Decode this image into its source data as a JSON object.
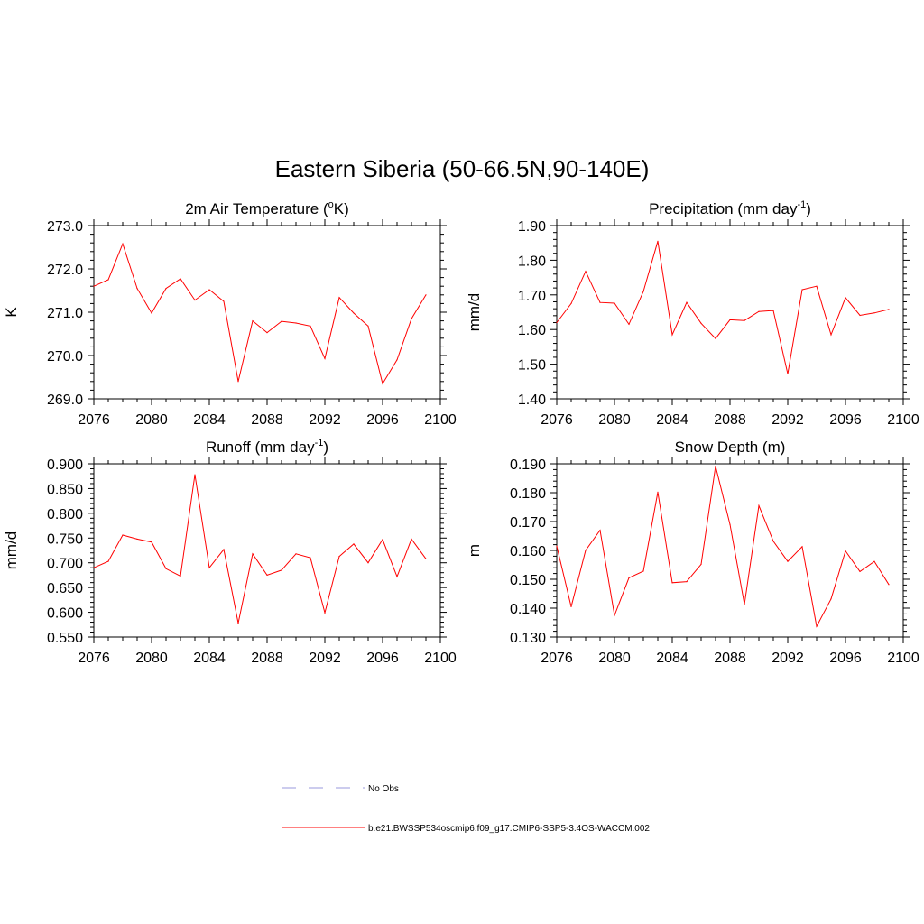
{
  "main_title": "Eastern Siberia (50-66.5N,90-140E)",
  "legend": [
    {
      "label": "No Obs",
      "color": "#9999dd",
      "dashed": true
    },
    {
      "label": "b.e21.BWSSP534oscmip6.f09_g17.CMIP6-SSP5-3.4OS-WACCM.002",
      "color": "#ff0000",
      "dashed": false
    }
  ],
  "chart_data": [
    {
      "type": "line",
      "title": "2m Air Temperature (",
      "title_sup": "o",
      "title_tail": "K)",
      "ylabel": "K",
      "xlim": [
        2076,
        2100
      ],
      "xticks": [
        "2076",
        "2080",
        "2084",
        "2088",
        "2092",
        "2096",
        "2100"
      ],
      "ylim": [
        269.0,
        273.0
      ],
      "yticks": [
        "269.0",
        "270.0",
        "271.0",
        "272.0",
        "273.0"
      ],
      "series": [
        {
          "color": "#ff0000",
          "x": [
            2076,
            2077,
            2078,
            2079,
            2080,
            2081,
            2082,
            2083,
            2084,
            2085,
            2086,
            2087,
            2088,
            2089,
            2090,
            2091,
            2092,
            2093,
            2094,
            2095,
            2096,
            2097,
            2098,
            2099
          ],
          "values": [
            271.6,
            271.75,
            272.58,
            271.55,
            270.98,
            271.55,
            271.77,
            271.28,
            271.52,
            271.25,
            269.4,
            270.8,
            270.53,
            270.79,
            270.75,
            270.68,
            269.93,
            271.34,
            270.98,
            270.68,
            269.35,
            269.9,
            270.85,
            271.4
          ]
        }
      ]
    },
    {
      "type": "line",
      "title": "Precipitation (mm day",
      "title_sup": "-1",
      "title_tail": ")",
      "ylabel": "mm/d",
      "xlim": [
        2076,
        2100
      ],
      "xticks": [
        "2076",
        "2080",
        "2084",
        "2088",
        "2092",
        "2096",
        "2100"
      ],
      "ylim": [
        1.4,
        1.9
      ],
      "yticks": [
        "1.40",
        "1.50",
        "1.60",
        "1.70",
        "1.80",
        "1.90"
      ],
      "series": [
        {
          "color": "#ff0000",
          "x": [
            2076,
            2077,
            2078,
            2079,
            2080,
            2081,
            2082,
            2083,
            2084,
            2085,
            2086,
            2087,
            2088,
            2089,
            2090,
            2091,
            2092,
            2093,
            2094,
            2095,
            2096,
            2097,
            2098,
            2099
          ],
          "values": [
            1.62,
            1.675,
            1.768,
            1.678,
            1.676,
            1.615,
            1.71,
            1.855,
            1.585,
            1.678,
            1.618,
            1.574,
            1.628,
            1.626,
            1.652,
            1.655,
            1.472,
            1.715,
            1.725,
            1.585,
            1.692,
            1.641,
            1.648,
            1.658
          ]
        }
      ]
    },
    {
      "type": "line",
      "title": "Runoff (mm day",
      "title_sup": "-1",
      "title_tail": ")",
      "ylabel": "mm/d",
      "xlim": [
        2076,
        2100
      ],
      "xticks": [
        "2076",
        "2080",
        "2084",
        "2088",
        "2092",
        "2096",
        "2100"
      ],
      "ylim": [
        0.55,
        0.9
      ],
      "yticks": [
        "0.550",
        "0.600",
        "0.650",
        "0.700",
        "0.750",
        "0.800",
        "0.850",
        "0.900"
      ],
      "series": [
        {
          "color": "#ff0000",
          "x": [
            2076,
            2077,
            2078,
            2079,
            2080,
            2081,
            2082,
            2083,
            2084,
            2085,
            2086,
            2087,
            2088,
            2089,
            2090,
            2091,
            2092,
            2093,
            2094,
            2095,
            2096,
            2097,
            2098,
            2099
          ],
          "values": [
            0.69,
            0.703,
            0.756,
            0.748,
            0.742,
            0.688,
            0.673,
            0.878,
            0.69,
            0.727,
            0.578,
            0.718,
            0.675,
            0.685,
            0.718,
            0.71,
            0.599,
            0.713,
            0.738,
            0.7,
            0.747,
            0.672,
            0.748,
            0.708
          ]
        }
      ]
    },
    {
      "type": "line",
      "title": "Snow Depth (m)",
      "title_sup": "",
      "title_tail": "",
      "ylabel": "m",
      "xlim": [
        2076,
        2100
      ],
      "xticks": [
        "2076",
        "2080",
        "2084",
        "2088",
        "2092",
        "2096",
        "2100"
      ],
      "ylim": [
        0.13,
        0.19
      ],
      "yticks": [
        "0.130",
        "0.140",
        "0.150",
        "0.160",
        "0.170",
        "0.180",
        "0.190"
      ],
      "series": [
        {
          "color": "#ff0000",
          "x": [
            2076,
            2077,
            2078,
            2079,
            2080,
            2081,
            2082,
            2083,
            2084,
            2085,
            2086,
            2087,
            2088,
            2089,
            2090,
            2091,
            2092,
            2093,
            2094,
            2095,
            2096,
            2097,
            2098,
            2099
          ],
          "values": [
            0.1615,
            0.1405,
            0.16,
            0.167,
            0.1375,
            0.1505,
            0.1528,
            0.1802,
            0.1488,
            0.1492,
            0.1552,
            0.1892,
            0.169,
            0.1413,
            0.1755,
            0.1632,
            0.1562,
            0.1613,
            0.1337,
            0.1432,
            0.1598,
            0.1527,
            0.1562,
            0.1482
          ]
        }
      ]
    }
  ]
}
